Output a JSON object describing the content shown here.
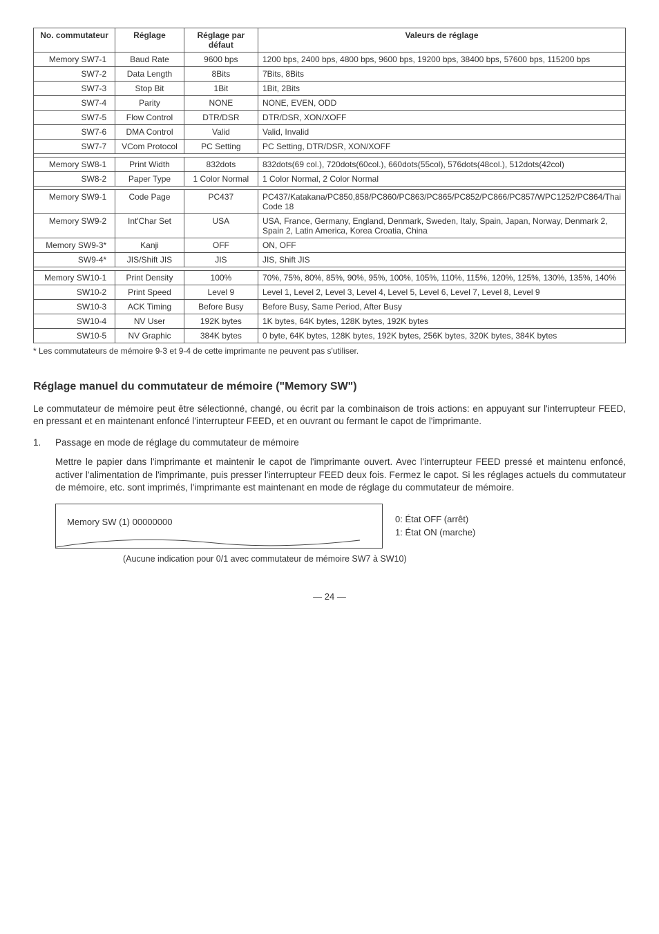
{
  "table": {
    "headers": [
      "No. commutateur",
      "Réglage",
      "Réglage par défaut",
      "Valeurs de réglage"
    ],
    "groups": [
      [
        {
          "c0": "Memory SW7-1",
          "c1": "Baud Rate",
          "c2": "9600 bps",
          "c3": "1200 bps, 2400 bps, 4800 bps, 9600 bps, 19200 bps, 38400 bps, 57600 bps, 115200 bps"
        },
        {
          "c0": "SW7-2",
          "c1": "Data Length",
          "c2": "8Bits",
          "c3": "7Bits, 8Bits"
        },
        {
          "c0": "SW7-3",
          "c1": "Stop Bit",
          "c2": "1Bit",
          "c3": "1Bit, 2Bits"
        },
        {
          "c0": "SW7-4",
          "c1": "Parity",
          "c2": "NONE",
          "c3": "NONE, EVEN, ODD"
        },
        {
          "c0": "SW7-5",
          "c1": "Flow Control",
          "c2": "DTR/DSR",
          "c3": "DTR/DSR, XON/XOFF"
        },
        {
          "c0": "SW7-6",
          "c1": "DMA Control",
          "c2": "Valid",
          "c3": "Valid, Invalid"
        },
        {
          "c0": "SW7-7",
          "c1": "VCom Protocol",
          "c2": "PC Setting",
          "c3": "PC Setting, DTR/DSR, XON/XOFF"
        }
      ],
      [
        {
          "c0": "Memory SW8-1",
          "c1": "Print Width",
          "c2": "832dots",
          "c3": "832dots(69 col.), 720dots(60col.), 660dots(55col), 576dots(48col.), 512dots(42col)"
        },
        {
          "c0": "SW8-2",
          "c1": "Paper Type",
          "c2": "1 Color Normal",
          "c3": "1 Color Normal, 2 Color Normal"
        }
      ],
      [
        {
          "c0": "Memory SW9-1",
          "c1": "Code Page",
          "c2": "PC437",
          "c3": "PC437/Katakana/PC850,858/PC860/PC863/PC865/PC852/PC866/PC857/WPC1252/PC864/Thai Code 18"
        },
        {
          "c0": "Memory SW9-2",
          "c1": "Int'Char Set",
          "c2": "USA",
          "c3": "USA, France, Germany, England, Denmark, Sweden, Italy, Spain, Japan, Norway, Denmark 2, Spain 2, Latin America, Korea Croatia, China"
        },
        {
          "c0": "Memory SW9-3*",
          "c1": "Kanji",
          "c2": "OFF",
          "c3": "ON, OFF"
        },
        {
          "c0": "SW9-4*",
          "c1": "JIS/Shift JIS",
          "c2": "JIS",
          "c3": "JIS, Shift JIS"
        }
      ],
      [
        {
          "c0": "Memory SW10-1",
          "c1": "Print Density",
          "c2": "100%",
          "c3": "70%, 75%, 80%, 85%, 90%, 95%, 100%, 105%, 110%, 115%, 120%, 125%, 130%, 135%, 140%"
        },
        {
          "c0": "SW10-2",
          "c1": "Print Speed",
          "c2": "Level 9",
          "c3": "Level 1, Level 2, Level 3, Level 4, Level 5, Level 6,  Level 7, Level 8, Level 9"
        },
        {
          "c0": "SW10-3",
          "c1": "ACK Timing",
          "c2": "Before Busy",
          "c3": "Before Busy, Same Period, After Busy"
        },
        {
          "c0": "SW10-4",
          "c1": "NV User",
          "c2": "192K bytes",
          "c3": "1K bytes, 64K bytes, 128K bytes, 192K bytes"
        },
        {
          "c0": "SW10-5",
          "c1": "NV Graphic",
          "c2": "384K bytes",
          "c3": "0 byte, 64K bytes, 128K bytes, 192K bytes, 256K bytes, 320K bytes, 384K bytes"
        }
      ]
    ]
  },
  "footnote": "* Les commutateurs de mémoire 9-3 et 9-4 de cette imprimante ne peuvent pas s'utiliser.",
  "section_heading": "Réglage manuel du commutateur de mémoire (\"Memory SW\")",
  "para1": "Le commutateur de mémoire peut être sélectionné, changé, ou écrit par la combinaison de trois actions: en appuyant sur l'interrupteur FEED, en pressant et en maintenant enfoncé l'interrupteur FEED, et en ouvrant ou fermant le capot de l'imprimante.",
  "list1_num": "1.",
  "list1_text": "Passage en mode de réglage du commutateur de mémoire",
  "para2": "Mettre le papier dans l'imprimante et maintenir le capot de l'imprimante ouvert. Avec l'interrupteur FEED pressé et maintenu enfoncé, activer l'alimentation de l'imprimante, puis presser l'interrupteur FEED deux fois. Fermez le capot.  Si les réglages actuels du commutateur de mémoire, etc. sont imprimés, l'imprimante est maintenant en mode de réglage du commutateur de mémoire.",
  "callout_box": "Memory SW (1)  00000000",
  "callout_side_l1": "0: État OFF (arrêt)",
  "callout_side_l2": "1: État ON (marche)",
  "post_callout": "(Aucune indication pour 0/1 avec commutateur de mémoire SW7 à SW10)",
  "page_num": "— 24 —",
  "col_widths": [
    "17%",
    "16%",
    "17%",
    "50%"
  ]
}
